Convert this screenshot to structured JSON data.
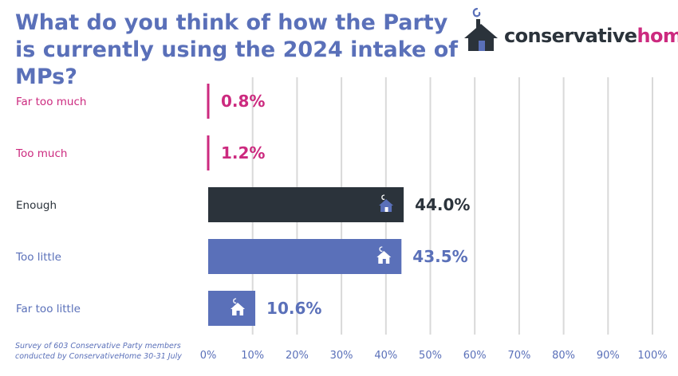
{
  "chart_data": {
    "type": "bar",
    "orientation": "horizontal",
    "title": "What do you think of how the Party is currently using the 2024 intake of MPs?",
    "categories": [
      "Far too much",
      "Too much",
      "Enough",
      "Too little",
      "Far too little"
    ],
    "values": [
      0.8,
      1.2,
      44.0,
      43.5,
      10.6
    ],
    "value_labels": [
      "0.8%",
      "1.2%",
      "44.0%",
      "43.5%",
      "10.6%"
    ],
    "bar_colors": [
      "#cc2a7f",
      "#cc2a7f",
      "#2b333b",
      "#5a70b9",
      "#5a70b9"
    ],
    "label_colors": [
      "#cc2a7f",
      "#cc2a7f",
      "#2b333b",
      "#5a70b9",
      "#5a70b9"
    ],
    "xlim": [
      0,
      100
    ],
    "x_ticks": [
      "0%",
      "10%",
      "20%",
      "30%",
      "40%",
      "50%",
      "60%",
      "70%",
      "80%",
      "90%",
      "100%"
    ],
    "grid": "vertical",
    "legend": "none"
  },
  "footnote": {
    "line1": "Survey of 603 Conservative Party members",
    "line2": "conducted by ConservativeHome 30-31 July"
  },
  "logo": {
    "part1": "conservative",
    "part2": "home",
    "part1_color": "#2b333b",
    "part2_color": "#cc2a7f",
    "icon": "house-with-smoke-icon"
  },
  "colors": {
    "accent_blue": "#5a70b9",
    "accent_pink": "#cc2a7f",
    "dark": "#2b333b",
    "grid": "#d9d9d9"
  }
}
